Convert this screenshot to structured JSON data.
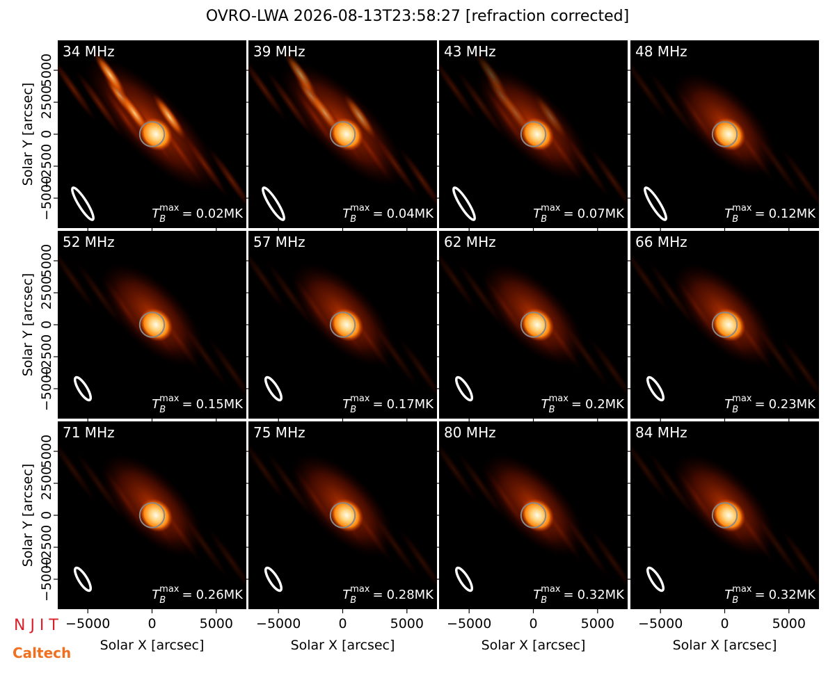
{
  "chart_data": {
    "type": "image-grid",
    "title": "OVRO-LWA 2026-08-13T23:58:27 [refraction corrected]",
    "x_label": "Solar X [arcsec]",
    "y_label": "Solar Y [arcsec]",
    "xlim": [
      -7340,
      7340
    ],
    "ylim": [
      -7340,
      7340
    ],
    "xticks": [
      {
        "value": -5000,
        "label": "−5000"
      },
      0,
      5000
    ],
    "yticks": [
      {
        "value": -5000,
        "label": "−5000"
      },
      {
        "value": -2500,
        "label": "−2500"
      },
      0,
      2500,
      5000
    ],
    "tb_symbol": "T",
    "tb_sub": "B",
    "tb_sup": "max",
    "tb_eq": "=",
    "tb_unit": "MK",
    "panels": [
      {
        "label": "34 MHz",
        "tb_max": 0.02
      },
      {
        "label": "39 MHz",
        "tb_max": 0.04
      },
      {
        "label": "43 MHz",
        "tb_max": 0.07
      },
      {
        "label": "48 MHz",
        "tb_max": 0.12
      },
      {
        "label": "52 MHz",
        "tb_max": 0.15
      },
      {
        "label": "57 MHz",
        "tb_max": 0.17
      },
      {
        "label": "62 MHz",
        "tb_max": 0.2
      },
      {
        "label": "66 MHz",
        "tb_max": 0.23
      },
      {
        "label": "71 MHz",
        "tb_max": 0.26
      },
      {
        "label": "75 MHz",
        "tb_max": 0.28
      },
      {
        "label": "80 MHz",
        "tb_max": 0.32
      },
      {
        "label": "84 MHz",
        "tb_max": 0.32
      }
    ]
  },
  "logos": {
    "njit": "N J I T",
    "caltech": "Caltech"
  }
}
